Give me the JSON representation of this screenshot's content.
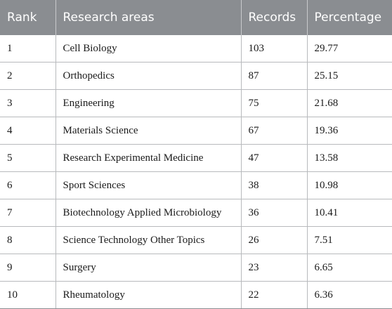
{
  "table": {
    "headers": [
      "Rank",
      "Research areas",
      "Records",
      "Percentage"
    ],
    "rows": [
      {
        "rank": "1",
        "area": "Cell Biology",
        "records": "103",
        "percentage": "29.77"
      },
      {
        "rank": "2",
        "area": "Orthopedics",
        "records": "87",
        "percentage": "25.15"
      },
      {
        "rank": "3",
        "area": "Engineering",
        "records": "75",
        "percentage": "21.68"
      },
      {
        "rank": "4",
        "area": "Materials Science",
        "records": "67",
        "percentage": "19.36"
      },
      {
        "rank": "5",
        "area": "Research Experimental Medicine",
        "records": "47",
        "percentage": "13.58"
      },
      {
        "rank": "6",
        "area": "Sport Sciences",
        "records": "38",
        "percentage": "10.98"
      },
      {
        "rank": "7",
        "area": "Biotechnology Applied Microbiology",
        "records": "36",
        "percentage": "10.41"
      },
      {
        "rank": "8",
        "area": "Science Technology Other Topics",
        "records": "26",
        "percentage": "7.51"
      },
      {
        "rank": "9",
        "area": "Surgery",
        "records": "23",
        "percentage": "6.65"
      },
      {
        "rank": "10",
        "area": "Rheumatology",
        "records": "22",
        "percentage": "6.36"
      }
    ]
  },
  "colors": {
    "header_background": "#8a8d91",
    "header_text": "#ffffff",
    "gridline": "#b8babd"
  }
}
